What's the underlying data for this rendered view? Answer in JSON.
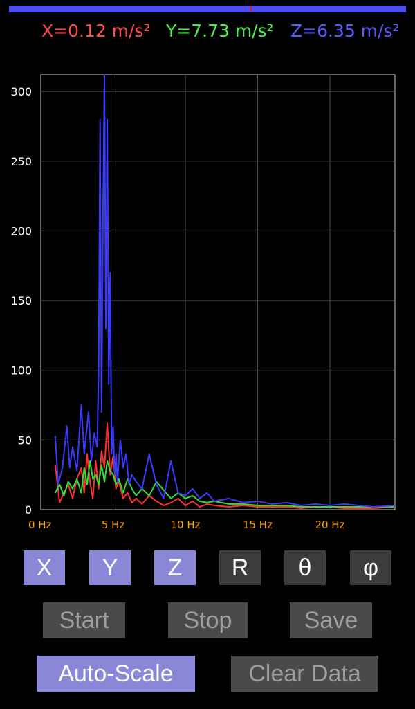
{
  "progress": {
    "value": 0.608
  },
  "readouts": {
    "x": {
      "text": "X=0.12 m/s²",
      "color": "#ff4a4a"
    },
    "y": {
      "text": "Y=7.73 m/s²",
      "color": "#4af04a"
    },
    "z": {
      "text": "Z=6.35 m/s²",
      "color": "#5a5aff"
    }
  },
  "axis_buttons": [
    {
      "label": "X",
      "state": "on"
    },
    {
      "label": "Y",
      "state": "on"
    },
    {
      "label": "Z",
      "state": "on"
    },
    {
      "label": "R",
      "state": "off"
    },
    {
      "label": "θ",
      "state": "off"
    },
    {
      "label": "φ",
      "state": "off"
    }
  ],
  "controls": {
    "start": "Start",
    "stop": "Stop",
    "save": "Save",
    "autoscale": "Auto-Scale",
    "clear": "Clear Data"
  },
  "chart_data": {
    "type": "line",
    "title": "",
    "xlabel": "",
    "ylabel": "",
    "xlim": [
      0,
      24.5
    ],
    "ylim": [
      0,
      312
    ],
    "xticks": [
      {
        "value": 0,
        "label": "0 Hz"
      },
      {
        "value": 5,
        "label": "5 Hz"
      },
      {
        "value": 10,
        "label": "10 Hz"
      },
      {
        "value": 15,
        "label": "15 Hz"
      },
      {
        "value": 20,
        "label": "20 Hz"
      }
    ],
    "yticks": [
      {
        "value": 0,
        "label": "0"
      },
      {
        "value": 50,
        "label": "50"
      },
      {
        "value": 100,
        "label": "100"
      },
      {
        "value": 150,
        "label": "150"
      },
      {
        "value": 200,
        "label": "200"
      },
      {
        "value": 250,
        "label": "250"
      },
      {
        "value": 300,
        "label": "300"
      }
    ],
    "grid": true,
    "tick_color": "#ffa500",
    "ytick_color": "#ffffff",
    "series": [
      {
        "key": "x",
        "color": "#ff3030",
        "x": [
          1.0,
          1.3,
          1.6,
          1.9,
          2.2,
          2.5,
          2.8,
          3.0,
          3.2,
          3.4,
          3.6,
          3.8,
          4.0,
          4.2,
          4.4,
          4.6,
          4.8,
          5.0,
          5.2,
          5.4,
          5.7,
          6.0,
          6.3,
          6.6,
          7.0,
          7.5,
          8.0,
          8.5,
          9.0,
          9.5,
          10.0,
          10.5,
          11.0,
          11.5,
          12,
          13,
          14,
          15,
          16,
          17,
          18,
          19,
          20,
          21,
          22,
          23,
          24.4
        ],
        "y": [
          32,
          5,
          12,
          18,
          8,
          22,
          30,
          12,
          40,
          20,
          8,
          35,
          15,
          42,
          30,
          62,
          25,
          38,
          15,
          20,
          8,
          12,
          5,
          8,
          4,
          10,
          6,
          3,
          5,
          8,
          3,
          6,
          2,
          4,
          3,
          2,
          3,
          2,
          2,
          2,
          1,
          2,
          2,
          1,
          1,
          1,
          2
        ]
      },
      {
        "key": "y",
        "color": "#30e030",
        "x": [
          1.0,
          1.3,
          1.6,
          1.9,
          2.2,
          2.5,
          2.8,
          3.0,
          3.2,
          3.4,
          3.6,
          3.8,
          4.0,
          4.2,
          4.4,
          4.6,
          4.8,
          5.0,
          5.2,
          5.4,
          5.7,
          6.0,
          6.3,
          6.6,
          7.0,
          7.5,
          8.0,
          8.5,
          9.0,
          9.5,
          10.0,
          10.5,
          11.0,
          11.5,
          12,
          13,
          14,
          15,
          16,
          17,
          18,
          19,
          20,
          21,
          22,
          23,
          24.4
        ],
        "y": [
          12,
          18,
          10,
          20,
          15,
          22,
          12,
          30,
          18,
          35,
          22,
          25,
          18,
          32,
          20,
          35,
          28,
          25,
          18,
          22,
          12,
          22,
          15,
          10,
          15,
          10,
          20,
          14,
          8,
          12,
          8,
          10,
          6,
          5,
          6,
          4,
          4,
          3,
          3,
          3,
          2,
          2,
          2,
          2,
          2,
          2,
          2
        ]
      },
      {
        "key": "z",
        "color": "#3a3aff",
        "x": [
          1.0,
          1.2,
          1.5,
          1.8,
          2.0,
          2.2,
          2.5,
          2.8,
          3.0,
          3.3,
          3.5,
          3.7,
          3.9,
          4.0,
          4.1,
          4.2,
          4.3,
          4.4,
          4.5,
          4.6,
          4.7,
          4.8,
          4.9,
          5.0,
          5.1,
          5.2,
          5.3,
          5.5,
          5.7,
          5.9,
          6.1,
          6.3,
          6.6,
          7.0,
          7.5,
          8.0,
          8.5,
          9.0,
          9.5,
          10.0,
          10.5,
          11.0,
          11.5,
          12,
          13,
          14,
          15,
          16,
          17,
          18,
          19,
          20,
          21,
          22,
          23,
          24.4
        ],
        "y": [
          53,
          18,
          30,
          60,
          30,
          45,
          28,
          75,
          40,
          70,
          35,
          55,
          45,
          100,
          280,
          70,
          210,
          312,
          130,
          280,
          90,
          170,
          40,
          60,
          25,
          40,
          20,
          50,
          30,
          40,
          18,
          25,
          20,
          15,
          40,
          18,
          8,
          35,
          12,
          10,
          15,
          8,
          12,
          6,
          8,
          5,
          6,
          4,
          5,
          3,
          4,
          3,
          4,
          3,
          2,
          3
        ]
      }
    ]
  }
}
